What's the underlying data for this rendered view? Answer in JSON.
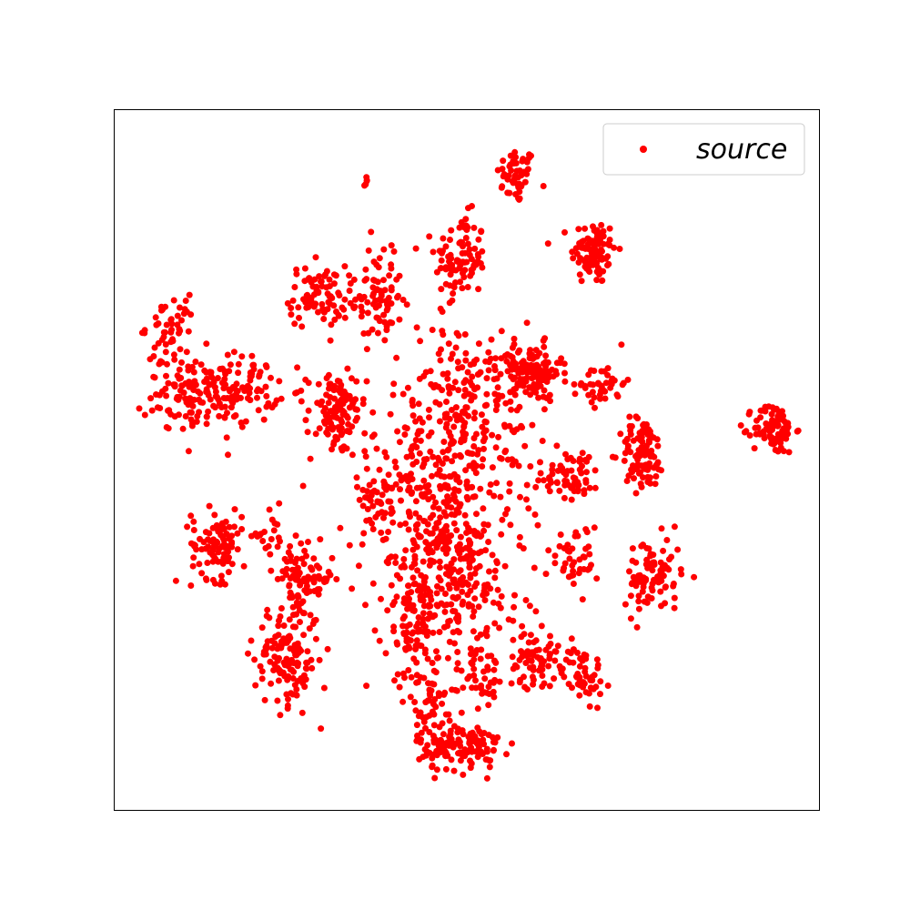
{
  "chart_data": {
    "type": "scatter",
    "title": "",
    "xlabel": "",
    "ylabel": "",
    "xlim": [
      0,
      100
    ],
    "ylim": [
      0,
      100
    ],
    "grid": false,
    "ticks": false,
    "legend_placement": "top-right",
    "series": [
      {
        "name": "source",
        "color": "#ff0000",
        "clusters": [
          {
            "cx": 57.0,
            "cy": 90.6,
            "sx": 1.4,
            "sy": 2.0,
            "n": 50
          },
          {
            "cx": 68.0,
            "cy": 79.8,
            "sx": 1.6,
            "sy": 2.4,
            "n": 95
          },
          {
            "cx": 49.1,
            "cy": 78.8,
            "sx": 1.8,
            "sy": 3.1,
            "n": 95
          },
          {
            "cx": 37.2,
            "cy": 72.8,
            "sx": 1.8,
            "sy": 3.0,
            "n": 75
          },
          {
            "cx": 28.8,
            "cy": 73.4,
            "sx": 2.0,
            "sy": 2.2,
            "n": 80
          },
          {
            "cx": 8.0,
            "cy": 69.0,
            "sx": 1.8,
            "sy": 2.1,
            "n": 45
          },
          {
            "cx": 10.5,
            "cy": 59.5,
            "sx": 3.0,
            "sy": 3.0,
            "n": 100
          },
          {
            "cx": 17.5,
            "cy": 60.0,
            "sx": 2.8,
            "sy": 2.4,
            "n": 100
          },
          {
            "cx": 31.5,
            "cy": 56.5,
            "sx": 2.1,
            "sy": 3.0,
            "n": 110
          },
          {
            "cx": 59.0,
            "cy": 62.5,
            "sx": 2.2,
            "sy": 2.0,
            "n": 130
          },
          {
            "cx": 69.3,
            "cy": 61.0,
            "sx": 1.6,
            "sy": 1.6,
            "n": 40
          },
          {
            "cx": 93.6,
            "cy": 54.5,
            "sx": 1.5,
            "sy": 1.8,
            "n": 90
          },
          {
            "cx": 75.0,
            "cy": 50.8,
            "sx": 1.6,
            "sy": 2.6,
            "n": 100
          },
          {
            "cx": 65.0,
            "cy": 48.0,
            "sx": 2.0,
            "sy": 1.8,
            "n": 60
          },
          {
            "cx": 14.5,
            "cy": 38.0,
            "sx": 1.8,
            "sy": 2.5,
            "n": 100
          },
          {
            "cx": 27.0,
            "cy": 33.0,
            "sx": 2.0,
            "sy": 2.2,
            "n": 80
          },
          {
            "cx": 24.5,
            "cy": 22.0,
            "sx": 2.3,
            "sy": 3.6,
            "n": 140
          },
          {
            "cx": 22.5,
            "cy": 38.5,
            "sx": 1.4,
            "sy": 2.0,
            "n": 25
          },
          {
            "cx": 76.5,
            "cy": 33.5,
            "sx": 2.0,
            "sy": 2.8,
            "n": 90
          },
          {
            "cx": 65.5,
            "cy": 36.0,
            "sx": 1.6,
            "sy": 2.4,
            "n": 40
          },
          {
            "cx": 59.5,
            "cy": 21.5,
            "sx": 1.8,
            "sy": 2.0,
            "n": 75
          },
          {
            "cx": 66.5,
            "cy": 19.5,
            "sx": 1.4,
            "sy": 2.0,
            "n": 55
          },
          {
            "cx": 49.0,
            "cy": 9.0,
            "sx": 3.0,
            "sy": 1.7,
            "n": 130
          },
          {
            "cx": 37.5,
            "cy": 45.0,
            "sx": 1.6,
            "sy": 2.0,
            "n": 35
          },
          {
            "cx": 50.0,
            "cy": 57.0,
            "sx": 5.5,
            "sy": 6.5,
            "n": 230
          },
          {
            "cx": 46.0,
            "cy": 43.0,
            "sx": 6.0,
            "sy": 7.0,
            "n": 260
          },
          {
            "cx": 43.0,
            "cy": 28.0,
            "sx": 2.4,
            "sy": 6.0,
            "n": 160
          },
          {
            "cx": 50.0,
            "cy": 32.0,
            "sx": 4.0,
            "sy": 5.0,
            "n": 120
          },
          {
            "cx": 52.5,
            "cy": 20.0,
            "sx": 1.8,
            "sy": 3.2,
            "n": 45
          },
          {
            "cx": 45.5,
            "cy": 14.5,
            "sx": 1.8,
            "sy": 2.8,
            "n": 45
          },
          {
            "cx": 38.5,
            "cy": 80.0,
            "sx": 1.8,
            "sy": 1.2,
            "n": 8
          },
          {
            "cx": 35.5,
            "cy": 90.0,
            "sx": 0.3,
            "sy": 0.4,
            "n": 5
          }
        ]
      }
    ]
  }
}
